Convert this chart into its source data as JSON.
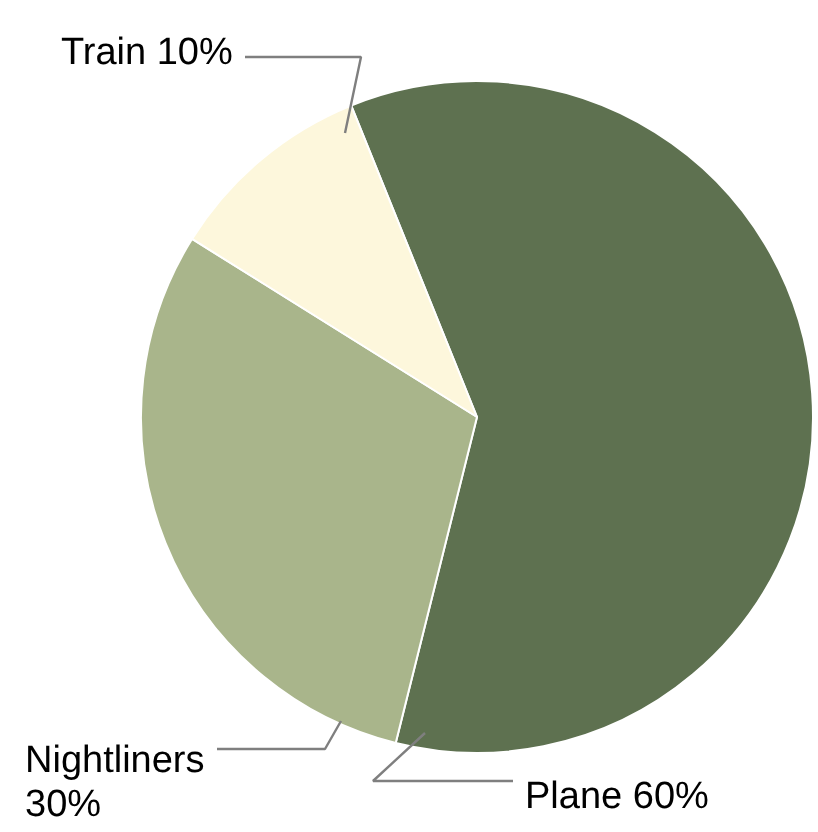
{
  "chart_data": {
    "type": "pie",
    "categories": [
      "Plane",
      "Nightliners",
      "Train"
    ],
    "values": [
      60,
      30,
      10
    ],
    "colors": [
      "#5e7150",
      "#a9b58b",
      "#fdf7dc"
    ],
    "value_labels": [
      "60%",
      "30%",
      "10%"
    ]
  }
}
